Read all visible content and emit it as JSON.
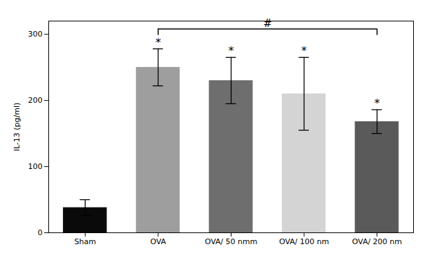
{
  "chart_data": {
    "type": "bar",
    "categories": [
      "Sham",
      "OVA",
      "OVA/ 50 nmm",
      "OVA/ 100 nm",
      "OVA/ 200 nm"
    ],
    "values": [
      38,
      250,
      230,
      210,
      168
    ],
    "errors": [
      12,
      28,
      35,
      55,
      18
    ],
    "colors": [
      "#0a0a0a",
      "#9e9e9e",
      "#6e6e6e",
      "#d4d4d4",
      "#5a5a5a"
    ],
    "ylabel": "IL-13 (pg/ml)",
    "ylim": [
      0,
      320
    ],
    "yticks": [
      0,
      100,
      200,
      300
    ],
    "grid": false,
    "annotations": [
      {
        "text": "*",
        "category": "OVA"
      },
      {
        "text": "*",
        "category": "OVA/ 50 nmm"
      },
      {
        "text": "*",
        "category": "OVA/ 100 nm"
      },
      {
        "text": "*",
        "category": "OVA/ 200 nm"
      },
      {
        "text": "#",
        "from": "OVA",
        "to": "OVA/ 200 nm",
        "y": 308
      }
    ]
  }
}
